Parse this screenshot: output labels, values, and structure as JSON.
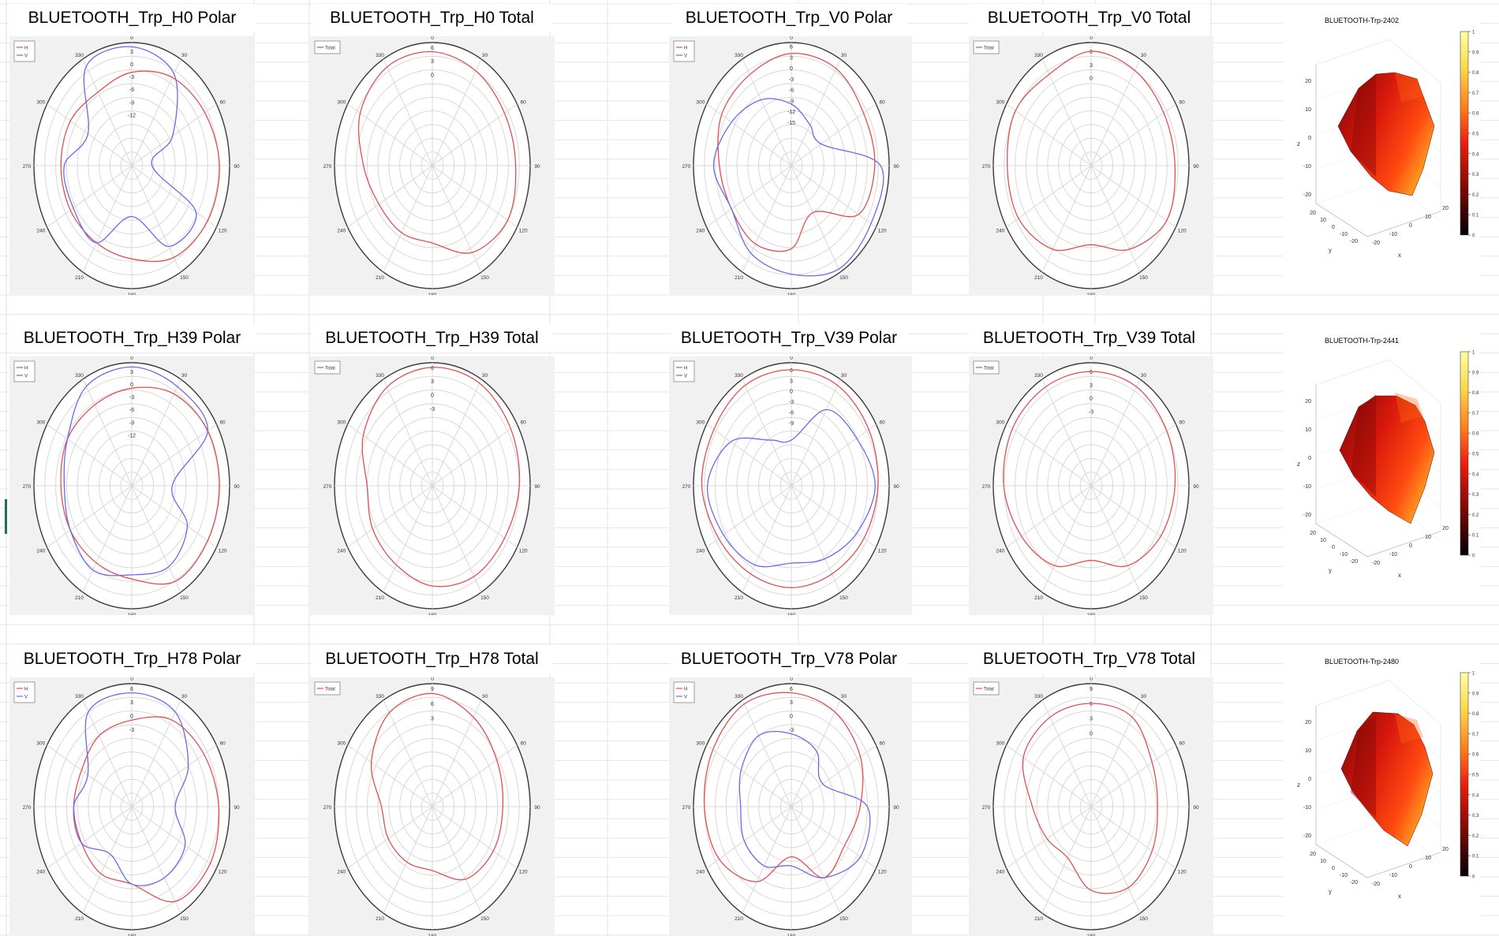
{
  "colors": {
    "h": "#e05050",
    "v": "#6a6aee",
    "total": "#e05050",
    "grid": "#d8d8d8",
    "axis": "#3a3a3a"
  },
  "angle_labels": [
    "0",
    "30",
    "60",
    "90",
    "120",
    "150",
    "180",
    "210",
    "240",
    "270",
    "300",
    "330"
  ],
  "chart_data": [
    {
      "type": "polar",
      "title": "BLUETOOTH_Trp_H0 Polar",
      "legend": [
        "H",
        "V"
      ],
      "radial_ticks": [
        "3",
        "0",
        "-3",
        "-6",
        "-9",
        "-12"
      ],
      "rlim": [
        -24,
        5
      ],
      "series": [
        {
          "name": "H",
          "values": [
            -2,
            0,
            1,
            2,
            2,
            1,
            -2,
            -3,
            -3,
            -3,
            -3,
            -4
          ]
        },
        {
          "name": "V",
          "values": [
            4,
            1,
            -10,
            -18,
            -2,
            -2,
            -12,
            -3,
            -4,
            -4,
            -9,
            3
          ]
        }
      ]
    },
    {
      "type": "polar",
      "title": "BLUETOOTH_Trp_H0 Total",
      "legend": [
        "Total"
      ],
      "radial_ticks": [
        "6",
        "3",
        "0"
      ],
      "rlim": [
        -20,
        7
      ],
      "series": [
        {
          "name": "Total",
          "values": [
            5,
            4,
            3,
            3,
            4,
            2,
            -3,
            -3,
            -3,
            -1,
            3,
            5
          ]
        }
      ]
    },
    {
      "type": "polar",
      "title": "BLUETOOTH_Trp_V0 Polar",
      "legend": [
        "H",
        "V"
      ],
      "radial_ticks": [
        "6",
        "3",
        "0",
        "-3",
        "-6",
        "-9",
        "-12",
        "-15"
      ],
      "rlim": [
        -27,
        7
      ],
      "series": [
        {
          "name": "H",
          "values": [
            4,
            4,
            2,
            2,
            0,
            -12,
            -4,
            -2,
            -3,
            -2,
            1,
            2
          ]
        },
        {
          "name": "V",
          "values": [
            -10,
            -14,
            -15,
            4,
            5,
            6,
            3,
            1,
            -3,
            0,
            -3,
            -6
          ]
        }
      ]
    },
    {
      "type": "polar",
      "title": "BLUETOOTH_Trp_V0 Total",
      "legend": [
        "Total"
      ],
      "radial_ticks": [
        "6",
        "3",
        "0"
      ],
      "rlim": [
        -20,
        8
      ],
      "series": [
        {
          "name": "Total",
          "values": [
            6,
            5,
            4,
            4,
            5,
            2,
            -2,
            2,
            4,
            4,
            5,
            4
          ]
        }
      ]
    },
    {
      "type": "polar",
      "title": "BLUETOOTH_Trp_H39 Polar",
      "legend": [
        "H",
        "V"
      ],
      "radial_ticks": [
        "3",
        "0",
        "-3",
        "-6",
        "-9",
        "-12"
      ],
      "rlim": [
        -24,
        5
      ],
      "series": [
        {
          "name": "H",
          "values": [
            -1,
            1,
            2,
            2,
            2,
            2,
            -2,
            -3,
            -3,
            -3,
            -2,
            -2
          ]
        },
        {
          "name": "V",
          "values": [
            4,
            3,
            2,
            -12,
            -5,
            -2,
            -3,
            -1,
            -3,
            -4,
            -2,
            3
          ]
        }
      ]
    },
    {
      "type": "polar",
      "title": "BLUETOOTH_Trp_H39 Total",
      "legend": [
        "Total"
      ],
      "radial_ticks": [
        "6",
        "3",
        "0",
        "-3"
      ],
      "rlim": [
        -20,
        7
      ],
      "series": [
        {
          "name": "Total",
          "values": [
            6,
            6,
            5,
            4,
            3,
            3,
            2,
            0,
            -1,
            -2,
            2,
            5
          ]
        }
      ]
    },
    {
      "type": "polar",
      "title": "BLUETOOTH_Trp_V39 Polar",
      "legend": [
        "H",
        "V"
      ],
      "radial_ticks": [
        "6",
        "3",
        "0",
        "-3",
        "-6",
        "-9"
      ],
      "rlim": [
        -27,
        8
      ],
      "series": [
        {
          "name": "H",
          "values": [
            6,
            6,
            5,
            4,
            3,
            2,
            2,
            2,
            3,
            5,
            5,
            6
          ]
        },
        {
          "name": "V",
          "values": [
            -14,
            -2,
            0,
            3,
            0,
            -3,
            -5,
            -1,
            1,
            3,
            -2,
            -12
          ]
        }
      ]
    },
    {
      "type": "polar",
      "title": "BLUETOOTH_Trp_V39 Total",
      "legend": [
        "Total"
      ],
      "radial_ticks": [
        "6",
        "3",
        "0",
        "-3"
      ],
      "rlim": [
        -20,
        8
      ],
      "series": [
        {
          "name": "Total",
          "values": [
            6,
            6,
            5,
            4,
            3,
            1,
            -3,
            1,
            3,
            5,
            6,
            6
          ]
        }
      ]
    },
    {
      "type": "polar",
      "title": "BLUETOOTH_Trp_H78 Polar",
      "legend": [
        "H",
        "V"
      ],
      "radial_ticks": [
        "6",
        "3",
        "0",
        "-3"
      ],
      "rlim": [
        -20,
        7
      ],
      "series": [
        {
          "name": "H",
          "values": [
            -1,
            2,
            3,
            4,
            5,
            4,
            -3,
            -3,
            -4,
            -4,
            -4,
            -2
          ]
        },
        {
          "name": "V",
          "values": [
            5,
            4,
            -2,
            -8,
            -3,
            -2,
            -3,
            -8,
            -4,
            -4,
            -6,
            4
          ]
        }
      ]
    },
    {
      "type": "polar",
      "title": "BLUETOOTH_Trp_H78 Total",
      "legend": [
        "Total"
      ],
      "radial_ticks": [
        "9",
        "6",
        "3"
      ],
      "rlim": [
        -15,
        10
      ],
      "series": [
        {
          "name": "Total",
          "values": [
            8,
            6,
            4,
            3,
            3,
            2,
            -2,
            -2,
            -2,
            -2,
            3,
            7
          ]
        }
      ]
    },
    {
      "type": "polar",
      "title": "BLUETOOTH_Trp_V78 Polar",
      "legend": [
        "H",
        "V"
      ],
      "radial_ticks": [
        "6",
        "3",
        "0",
        "-3"
      ],
      "rlim": [
        -20,
        7
      ],
      "series": [
        {
          "name": "H",
          "values": [
            5,
            4,
            2,
            -1,
            -3,
            -2,
            -9,
            -1,
            3,
            4,
            5,
            6
          ]
        },
        {
          "name": "V",
          "values": [
            -4,
            -6,
            -10,
            1,
            2,
            -2,
            -7,
            -5,
            -5,
            -6,
            -4,
            -2
          ]
        }
      ]
    },
    {
      "type": "polar",
      "title": "BLUETOOTH_Trp_V78 Total",
      "legend": [
        "Total"
      ],
      "radial_ticks": [
        "9",
        "6",
        "3",
        "0"
      ],
      "rlim": [
        -15,
        10
      ],
      "series": [
        {
          "name": "Total",
          "values": [
            6,
            6,
            3,
            2,
            3,
            4,
            2,
            -3,
            -2,
            0,
            5,
            6
          ]
        }
      ]
    },
    {
      "type": "surface3d",
      "title": "BLUETOOTH-Trp-2402",
      "zlabel": "z",
      "ylabel": "y",
      "xlabel": "x",
      "ticks": [
        "20",
        "10",
        "0",
        "-10",
        "-20"
      ],
      "colorbar_ticks": [
        "1",
        "0.9",
        "0.8",
        "0.7",
        "0.6",
        "0.5",
        "0.4",
        "0.3",
        "0.2",
        "0.1",
        "0"
      ]
    },
    {
      "type": "surface3d",
      "title": "BLUETOOTH-Trp-2441",
      "zlabel": "z",
      "ylabel": "y",
      "xlabel": "x",
      "ticks": [
        "20",
        "10",
        "0",
        "-10",
        "-20"
      ],
      "colorbar_ticks": [
        "1",
        "0.9",
        "0.8",
        "0.7",
        "0.6",
        "0.5",
        "0.4",
        "0.3",
        "0.2",
        "0.1",
        "0"
      ]
    },
    {
      "type": "surface3d",
      "title": "BLUETOOTH-Trp-2480",
      "zlabel": "z",
      "ylabel": "y",
      "xlabel": "x",
      "ticks": [
        "20",
        "10",
        "0",
        "-10",
        "-20"
      ],
      "colorbar_ticks": [
        "1",
        "0.9",
        "0.8",
        "0.7",
        "0.6",
        "0.5",
        "0.4",
        "0.3",
        "0.2",
        "0.1",
        "0"
      ]
    }
  ]
}
